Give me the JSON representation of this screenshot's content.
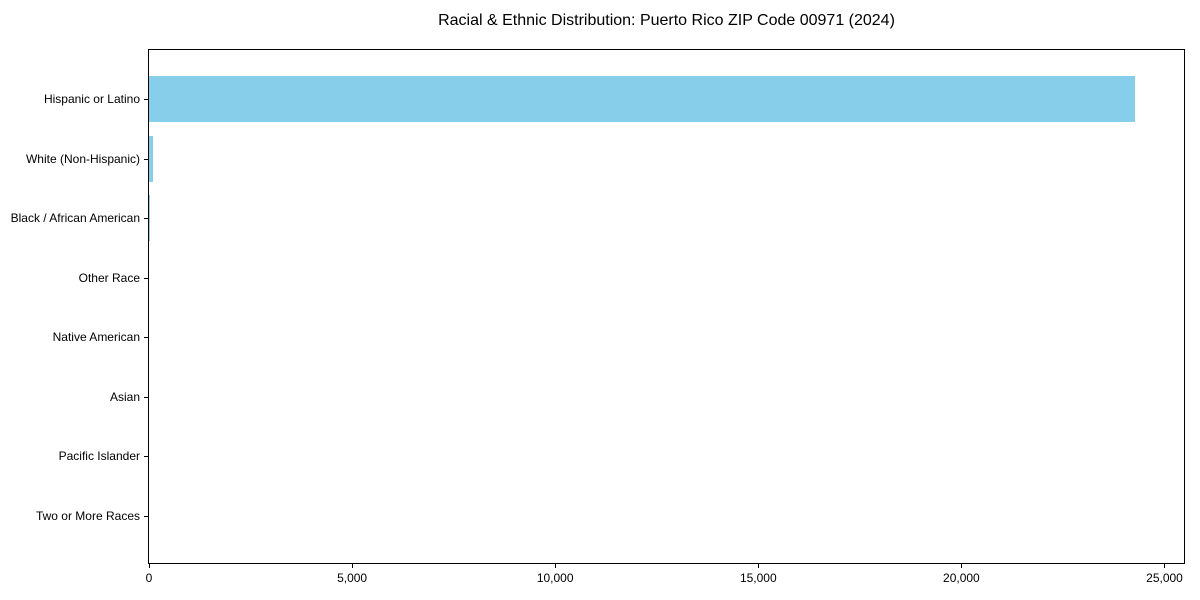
{
  "chart_data": {
    "type": "bar",
    "orientation": "horizontal",
    "title": "Racial & Ethnic Distribution: Puerto Rico ZIP Code 00971 (2024)",
    "categories": [
      "Hispanic or Latino",
      "White (Non-Hispanic)",
      "Black / African American",
      "Other Race",
      "Native American",
      "Asian",
      "Pacific Islander",
      "Two or More Races"
    ],
    "values": [
      24270,
      100,
      25,
      0,
      0,
      0,
      0,
      0
    ],
    "x_ticks": [
      0,
      5000,
      10000,
      15000,
      20000,
      25000
    ],
    "x_tick_labels": [
      "0",
      "5,000",
      "10,000",
      "15,000",
      "20,000",
      "25,000"
    ],
    "xlim": [
      0,
      25480
    ],
    "xlabel": "",
    "ylabel": "",
    "bar_color": "#87ceeb",
    "axis_color": "#000000",
    "background_color": "#ffffff",
    "grid": false,
    "legend": null
  }
}
